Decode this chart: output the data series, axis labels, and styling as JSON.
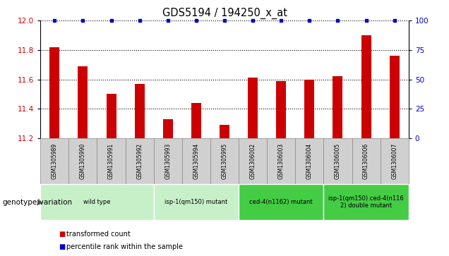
{
  "title": "GDS5194 / 194250_x_at",
  "samples": [
    "GSM1305989",
    "GSM1305990",
    "GSM1305991",
    "GSM1305992",
    "GSM1305993",
    "GSM1305994",
    "GSM1305995",
    "GSM1306002",
    "GSM1306003",
    "GSM1306004",
    "GSM1306005",
    "GSM1306006",
    "GSM1306007"
  ],
  "bar_values": [
    11.82,
    11.69,
    11.5,
    11.57,
    11.33,
    11.44,
    11.29,
    11.61,
    11.59,
    11.6,
    11.62,
    11.9,
    11.76
  ],
  "percentile_values": [
    100,
    100,
    100,
    100,
    100,
    100,
    100,
    100,
    100,
    100,
    100,
    100,
    100
  ],
  "ylim_left": [
    11.2,
    12.0
  ],
  "ylim_right": [
    0,
    100
  ],
  "yticks_left": [
    11.2,
    11.4,
    11.6,
    11.8,
    12.0
  ],
  "yticks_right": [
    0,
    25,
    50,
    75,
    100
  ],
  "groups": [
    {
      "label": "wild type",
      "indices": [
        0,
        1,
        2,
        3
      ],
      "color": "#c8f0c8"
    },
    {
      "label": "isp-1(qm150) mutant",
      "indices": [
        4,
        5,
        6
      ],
      "color": "#c8f0c8"
    },
    {
      "label": "ced-4(n1162) mutant",
      "indices": [
        7,
        8,
        9
      ],
      "color": "#44cc44"
    },
    {
      "label": "isp-1(qm150) ced-4(n116\n2) double mutant",
      "indices": [
        10,
        11,
        12
      ],
      "color": "#44cc44"
    }
  ],
  "bar_color": "#cc0000",
  "dot_color": "#0000cc",
  "legend_label_bar": "transformed count",
  "legend_label_dot": "percentile rank within the sample",
  "xlabel_genotype": "genotype/variation",
  "sample_box_color": "#d0d0d0",
  "sample_box_edge": "#888888"
}
